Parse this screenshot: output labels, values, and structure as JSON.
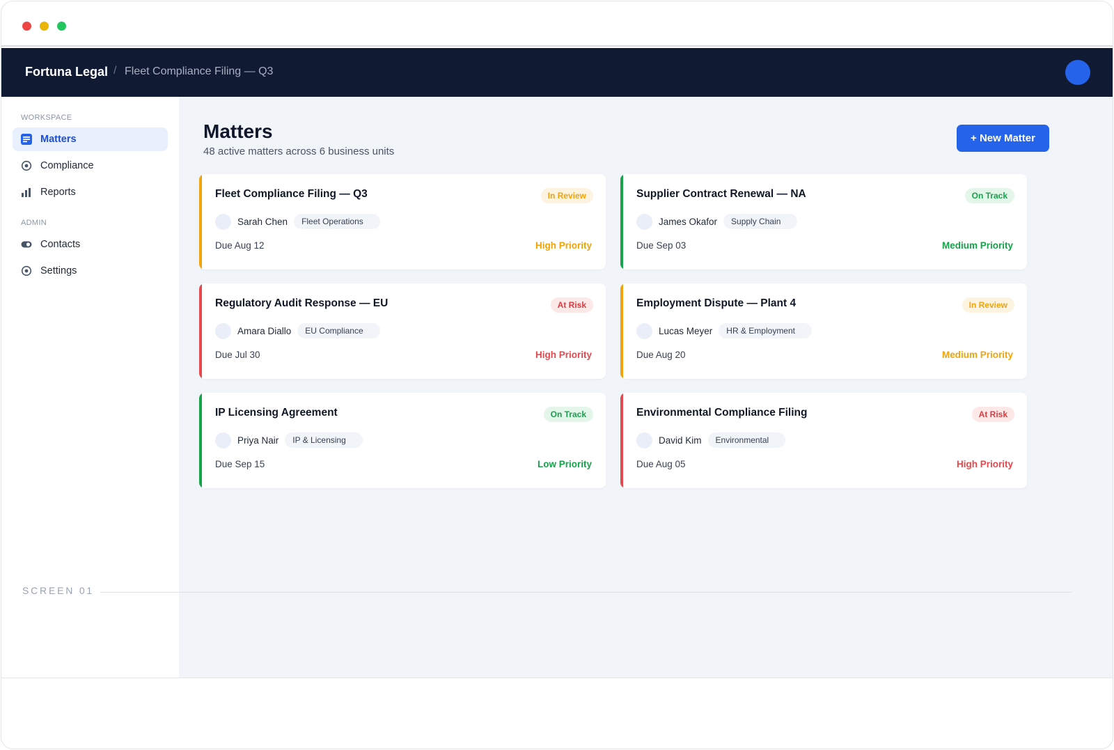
{
  "header": {
    "brand": "Fortuna Legal",
    "separator": "/",
    "breadcrumb": "Fleet Compliance Filing — Q3"
  },
  "sidebar": {
    "sections": [
      {
        "label": "WORKSPACE",
        "items": [
          {
            "label": "Matters",
            "icon": "matters-icon",
            "active": true
          },
          {
            "label": "Compliance",
            "icon": "target-icon",
            "active": false
          },
          {
            "label": "Reports",
            "icon": "bar-chart-icon",
            "active": false
          }
        ]
      },
      {
        "label": "ADMIN",
        "items": [
          {
            "label": "Contacts",
            "icon": "contacts-icon",
            "active": false
          },
          {
            "label": "Settings",
            "icon": "settings-icon",
            "active": false
          }
        ]
      }
    ]
  },
  "main": {
    "title": "Matters",
    "subtitle": "48 active matters across 6 business units",
    "new_button": "+ New Matter",
    "matters": [
      {
        "title": "Fleet Compliance Filing — Q3",
        "status": "In Review",
        "owner": "Sarah Chen",
        "unit": "Fleet Operations",
        "due": "Due Aug 12",
        "priority": "High Priority",
        "accent": "#f0a30a",
        "status_color": "#f0a30a",
        "status_bg": "#fdf3e1",
        "priority_color": "#f0a30a"
      },
      {
        "title": "Supplier Contract Renewal — NA",
        "status": "On Track",
        "owner": "James Okafor",
        "unit": "Supply Chain",
        "due": "Due Sep 03",
        "priority": "Medium Priority",
        "accent": "#16a34a",
        "status_color": "#16a34a",
        "status_bg": "#e4f6ea",
        "priority_color": "#16a34a"
      },
      {
        "title": "Regulatory Audit Response — EU",
        "status": "At Risk",
        "owner": "Amara Diallo",
        "unit": "EU Compliance",
        "due": "Due Jul 30",
        "priority": "High Priority",
        "accent": "#e5484d",
        "status_color": "#dc3b3f",
        "status_bg": "#fde8e8",
        "priority_color": "#e5484d"
      },
      {
        "title": "Employment Dispute — Plant 4",
        "status": "In Review",
        "owner": "Lucas Meyer",
        "unit": "HR & Employment",
        "due": "Due Aug 20",
        "priority": "Medium Priority",
        "accent": "#f0a30a",
        "status_color": "#f0a30a",
        "status_bg": "#fdf3e1",
        "priority_color": "#f0a30a"
      },
      {
        "title": "IP Licensing Agreement",
        "status": "On Track",
        "owner": "Priya Nair",
        "unit": "IP & Licensing",
        "due": "Due Sep 15",
        "priority": "Low Priority",
        "accent": "#16a34a",
        "status_color": "#16a34a",
        "status_bg": "#e4f6ea",
        "priority_color": "#16a34a"
      },
      {
        "title": "Environmental Compliance Filing",
        "status": "At Risk",
        "owner": "David Kim",
        "unit": "Environmental",
        "due": "Due Aug 05",
        "priority": "High Priority",
        "accent": "#e5484d",
        "status_color": "#dc3b3f",
        "status_bg": "#fde8e8",
        "priority_color": "#e5484d"
      }
    ]
  },
  "footer": {
    "screen_label": "SCREEN 01"
  },
  "colors": {
    "accent": "#2563eb",
    "header_bg": "#111a33",
    "main_bg": "#f1f4f9"
  }
}
